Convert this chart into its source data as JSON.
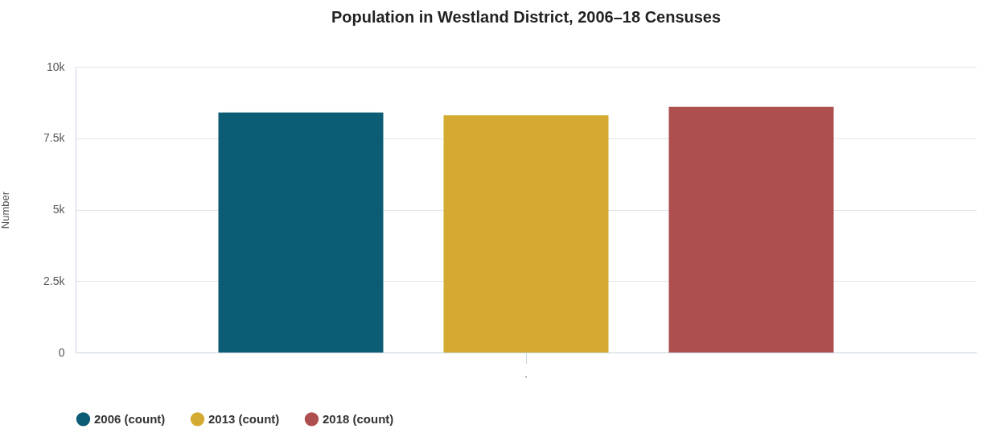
{
  "chart_data": {
    "type": "bar",
    "title": "Population in Westland District, 2006–18 Censuses",
    "ylabel": "Number",
    "categories": [
      "."
    ],
    "series": [
      {
        "name": "2006 (count)",
        "color": "#0b5c74",
        "values": [
          8400
        ]
      },
      {
        "name": "2013 (count)",
        "color": "#d4ab30",
        "values": [
          8300
        ]
      },
      {
        "name": "2018 (count)",
        "color": "#ae4f4f",
        "values": [
          8600
        ]
      }
    ],
    "ylim": [
      0,
      10000
    ],
    "yticks": [
      0,
      {
        "value": 2500,
        "label": "2.5k"
      },
      {
        "value": 5000,
        "label": "5k"
      },
      {
        "value": 7500,
        "label": "7.5k"
      },
      {
        "value": 10000,
        "label": "10k"
      }
    ],
    "grid": "y",
    "legend": "bottom"
  }
}
